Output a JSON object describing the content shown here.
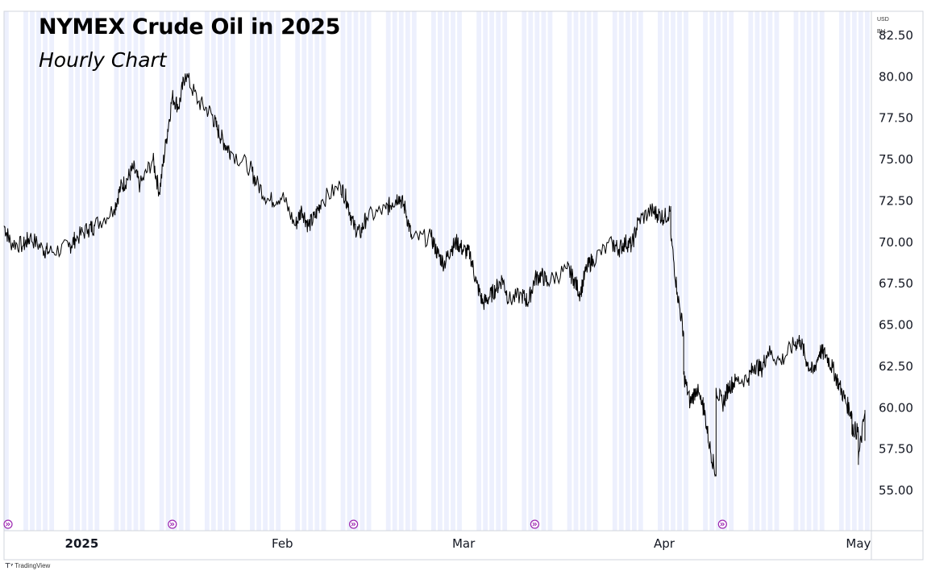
{
  "chart_data": {
    "type": "line",
    "title": "NYMEX Crude Oil in 2025",
    "subtitle": "Hourly Chart",
    "currency": "USD",
    "unit": "BLL",
    "ylim": [
      52.5,
      83.0
    ],
    "yticks": [
      "55.00",
      "57.50",
      "60.00",
      "62.50",
      "65.00",
      "67.50",
      "70.00",
      "72.50",
      "75.00",
      "77.50",
      "80.00",
      "82.50"
    ],
    "xlim": [
      "2024-12-20",
      "2025-05-03"
    ],
    "xticks": [
      {
        "label": "2025",
        "date": "2025-01-01",
        "bold": true
      },
      {
        "label": "Feb",
        "date": "2025-02-01",
        "bold": false
      },
      {
        "label": "Mar",
        "date": "2025-03-01",
        "bold": false
      },
      {
        "label": "Apr",
        "date": "2025-04-01",
        "bold": false
      },
      {
        "label": "May",
        "date": "2025-05-01",
        "bold": false
      }
    ],
    "event_markers": [
      "2024-12-20",
      "2025-01-15",
      "2025-02-12",
      "2025-03-12",
      "2025-04-10"
    ],
    "grid": false,
    "legend": "none",
    "series": [
      {
        "x": [
          "2024-12-20",
          "2024-12-21",
          "2024-12-23",
          "2024-12-24",
          "2024-12-26",
          "2024-12-27",
          "2024-12-30",
          "2024-12-31",
          "2025-01-02",
          "2025-01-03",
          "2025-01-06",
          "2025-01-07",
          "2025-01-08",
          "2025-01-09",
          "2025-01-10",
          "2025-01-12",
          "2025-01-13",
          "2025-01-14",
          "2025-01-15",
          "2025-01-16",
          "2025-01-17",
          "2025-01-19",
          "2025-01-21",
          "2025-01-22",
          "2025-01-23",
          "2025-01-24",
          "2025-01-27",
          "2025-01-28",
          "2025-01-30",
          "2025-02-01",
          "2025-02-03",
          "2025-02-04",
          "2025-02-05",
          "2025-02-06",
          "2025-02-07",
          "2025-02-10",
          "2025-02-11",
          "2025-02-12",
          "2025-02-13",
          "2025-02-14",
          "2025-02-17",
          "2025-02-18",
          "2025-02-19",
          "2025-02-20",
          "2025-02-21",
          "2025-02-24",
          "2025-02-25",
          "2025-02-26",
          "2025-02-27",
          "2025-02-28",
          "2025-03-01",
          "2025-03-02",
          "2025-03-03",
          "2025-03-04",
          "2025-03-05",
          "2025-03-06",
          "2025-03-07",
          "2025-03-08",
          "2025-03-10",
          "2025-03-11",
          "2025-03-12",
          "2025-03-13",
          "2025-03-14",
          "2025-03-17",
          "2025-03-18",
          "2025-03-19",
          "2025-03-20",
          "2025-03-21",
          "2025-03-24",
          "2025-03-25",
          "2025-03-26",
          "2025-03-27",
          "2025-03-28",
          "2025-03-30",
          "2025-03-31",
          "2025-04-01",
          "2025-04-02",
          "2025-04-02",
          "2025-04-03",
          "2025-04-04",
          "2025-04-04",
          "2025-04-05",
          "2025-04-06",
          "2025-04-07",
          "2025-04-07",
          "2025-04-08",
          "2025-04-09",
          "2025-04-09",
          "2025-04-10",
          "2025-04-11",
          "2025-04-12",
          "2025-04-14",
          "2025-04-15",
          "2025-04-16",
          "2025-04-17",
          "2025-04-19",
          "2025-04-21",
          "2025-04-22",
          "2025-04-23",
          "2025-04-24",
          "2025-04-25",
          "2025-04-26",
          "2025-04-27",
          "2025-04-28",
          "2025-04-29",
          "2025-04-30",
          "2025-04-30",
          "2025-05-01",
          "2025-05-01",
          "2025-05-02",
          "2025-05-02"
        ],
        "y": [
          71.0,
          70.0,
          69.8,
          70.3,
          69.6,
          69.4,
          69.7,
          70.2,
          70.8,
          71.0,
          72.0,
          73.3,
          73.8,
          74.5,
          73.4,
          75.0,
          73.0,
          76.0,
          78.8,
          78.2,
          80.2,
          78.5,
          77.8,
          76.8,
          76.0,
          75.5,
          74.5,
          73.6,
          72.5,
          72.8,
          71.0,
          72.0,
          71.0,
          71.5,
          72.5,
          73.4,
          72.5,
          71.0,
          70.5,
          71.5,
          72.0,
          72.4,
          72.8,
          72.0,
          70.2,
          70.3,
          69.3,
          68.7,
          69.6,
          70.0,
          69.5,
          69.3,
          67.5,
          66.3,
          66.7,
          67.2,
          67.8,
          66.5,
          66.8,
          66.4,
          67.8,
          68.0,
          67.6,
          68.4,
          67.8,
          66.9,
          68.4,
          69.0,
          69.9,
          69.6,
          70.0,
          69.8,
          71.3,
          71.9,
          71.7,
          71.5,
          71.9,
          70.5,
          67.0,
          64.5,
          62.0,
          60.3,
          61.2,
          59.8,
          60.3,
          57.7,
          55.9,
          61.2,
          60.2,
          61.3,
          61.6,
          61.8,
          62.6,
          62.3,
          63.4,
          62.8,
          63.8,
          64.1,
          62.8,
          62.1,
          63.4,
          63.2,
          62.4,
          61.4,
          60.4,
          59.6,
          58.8,
          58.5,
          56.9,
          59.7,
          58.0
        ]
      }
    ]
  }
}
